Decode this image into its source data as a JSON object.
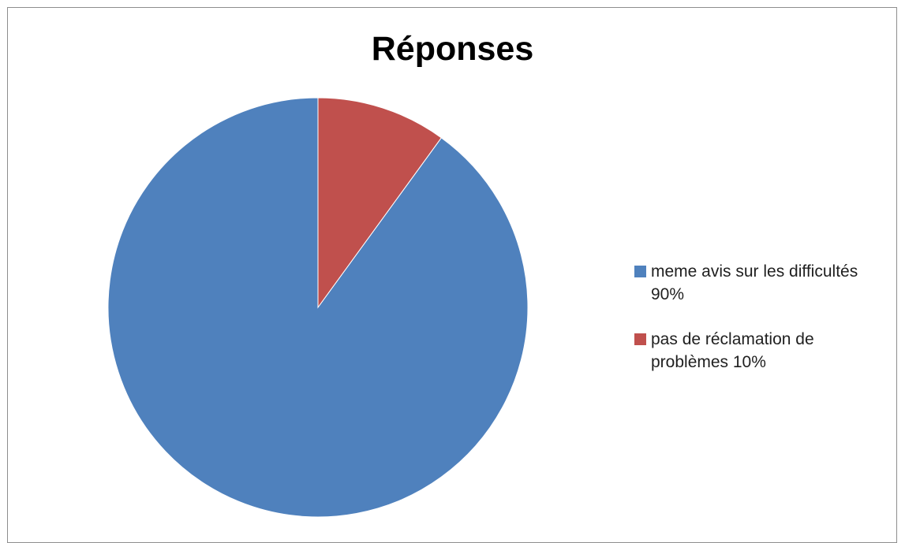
{
  "chart_data": {
    "type": "pie",
    "title": "Réponses",
    "slices": [
      {
        "label": "meme avis sur les difficultés 90%",
        "value": 90,
        "color": "#4f81bd"
      },
      {
        "label": "pas de réclamation de problèmes 10%",
        "value": 10,
        "color": "#c0504d"
      }
    ],
    "legend_position": "right",
    "start_angle_deg": 0,
    "direction": "counterclockwise"
  }
}
